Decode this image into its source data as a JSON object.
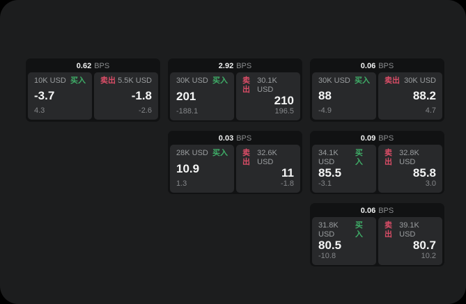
{
  "app": {
    "outer_background": "#000000",
    "surface_background": "#1c1d1e",
    "card_background": "#111213",
    "panel_background": "#28292b",
    "accent_buy_green": "#3fae68",
    "accent_sell_red": "#da4d67"
  },
  "labels": {
    "bps_unit": "BPS",
    "buy": "买入",
    "sell": "卖出"
  },
  "cards": [
    {
      "row": 1,
      "col": 1,
      "bps": "0.62",
      "buy": {
        "size": "10K USD",
        "price": "-3.7",
        "delta": "4.3"
      },
      "sell": {
        "size": "5.5K USD",
        "price": "-1.8",
        "delta": "-2.6"
      }
    },
    {
      "row": 1,
      "col": 2,
      "bps": "2.92",
      "buy": {
        "size": "30K USD",
        "price": "201",
        "delta": "-188.1"
      },
      "sell": {
        "size": "30.1K USD",
        "price": "210",
        "delta": "196.5"
      }
    },
    {
      "row": 1,
      "col": 3,
      "bps": "0.06",
      "buy": {
        "size": "30K USD",
        "price": "88",
        "delta": "-4.9"
      },
      "sell": {
        "size": "30K USD",
        "price": "88.2",
        "delta": "4.7"
      }
    },
    {
      "row": 2,
      "col": 2,
      "bps": "0.03",
      "buy": {
        "size": "28K USD",
        "price": "10.9",
        "delta": "1.3"
      },
      "sell": {
        "size": "32.6K USD",
        "price": "11",
        "delta": "-1.8"
      }
    },
    {
      "row": 2,
      "col": 3,
      "bps": "0.09",
      "buy": {
        "size": "34.1K USD",
        "price": "85.5",
        "delta": "-3.1"
      },
      "sell": {
        "size": "32.8K USD",
        "price": "85.8",
        "delta": "3.0"
      }
    },
    {
      "row": 3,
      "col": 3,
      "bps": "0.06",
      "buy": {
        "size": "31.8K USD",
        "price": "80.5",
        "delta": "-10.8"
      },
      "sell": {
        "size": "39.1K USD",
        "price": "80.7",
        "delta": "10.2"
      }
    }
  ]
}
